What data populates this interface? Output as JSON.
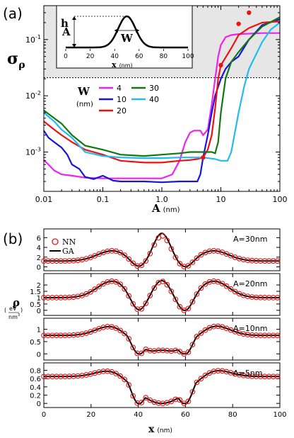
{
  "figure": {
    "panel_a_label": "(a)",
    "panel_b_label": "(b)",
    "ylabel_a_main": "σ",
    "ylabel_a_sub": "ρ",
    "xlabel_a_main": "A",
    "xlabel_a_unit": "(nm)",
    "legend_a_title": "W",
    "legend_a_unit": "(nm)",
    "inset": {
      "h_label": "h",
      "A_label": "A",
      "W_label": "W",
      "xlabel_main": "x",
      "xlabel_unit": "(nm)",
      "ticks": [
        "0",
        "20",
        "40",
        "60",
        "80",
        "100"
      ]
    },
    "ylabel_b_main": "ρ",
    "ylabel_b_unit_top": "eV",
    "ylabel_b_unit_bottom": "nm",
    "ylabel_b_unit_exp": "3",
    "xlabel_b_main": "x",
    "xlabel_b_unit": "(nm)",
    "legend_b_nn": "NN",
    "legend_b_ga": "GA"
  },
  "chart_data": [
    {
      "type": "line",
      "panel": "a",
      "xscale": "log",
      "yscale": "log",
      "xlim": [
        0.01,
        100
      ],
      "ylim": [
        0.0002,
        0.4
      ],
      "x_ticks": [
        "0.01",
        "0.1",
        "1.0",
        "10",
        "100"
      ],
      "y_ticks": [
        {
          "mant": "10",
          "exp": "-3",
          "value": 0.001
        },
        {
          "mant": "10",
          "exp": "-2",
          "value": 0.01
        },
        {
          "mant": "10",
          "exp": "-1",
          "value": 0.1
        }
      ],
      "threshold": 0.021,
      "shaded_above_threshold": true,
      "legend_placement": "center-left",
      "colors": {
        "4": "#ee22ee",
        "10": "#1515dd",
        "20": "#ee1111",
        "30": "#117711",
        "40": "#22bbee",
        "markers": "#ee1111"
      },
      "series": [
        {
          "name": "4",
          "color": "#ee22ee",
          "points": [
            [
              0.01,
              0.00072
            ],
            [
              0.012,
              0.0006
            ],
            [
              0.015,
              0.00047
            ],
            [
              0.02,
              0.0004
            ],
            [
              0.03,
              0.00038
            ],
            [
              0.05,
              0.00035
            ],
            [
              0.1,
              0.00034
            ],
            [
              0.2,
              0.00034
            ],
            [
              0.5,
              0.00034
            ],
            [
              1,
              0.00034
            ],
            [
              1.5,
              0.0004
            ],
            [
              2,
              0.0007
            ],
            [
              2.5,
              0.0015
            ],
            [
              3,
              0.0022
            ],
            [
              3.5,
              0.0024
            ],
            [
              4,
              0.0024
            ],
            [
              4.5,
              0.0024
            ],
            [
              5,
              0.002
            ],
            [
              6,
              0.0025
            ],
            [
              7,
              0.007
            ],
            [
              8,
              0.02
            ],
            [
              9,
              0.05
            ],
            [
              10,
              0.08
            ],
            [
              12,
              0.11
            ],
            [
              15,
              0.12
            ],
            [
              20,
              0.125
            ],
            [
              50,
              0.13
            ],
            [
              100,
              0.13
            ]
          ]
        },
        {
          "name": "10",
          "color": "#1515dd",
          "points": [
            [
              0.01,
              0.0024
            ],
            [
              0.012,
              0.0018
            ],
            [
              0.015,
              0.0015
            ],
            [
              0.02,
              0.0012
            ],
            [
              0.025,
              0.0009
            ],
            [
              0.03,
              0.0006
            ],
            [
              0.04,
              0.0005
            ],
            [
              0.05,
              0.00036
            ],
            [
              0.07,
              0.00033
            ],
            [
              0.1,
              0.00038
            ],
            [
              0.15,
              0.00031
            ],
            [
              0.2,
              0.0003
            ],
            [
              0.3,
              0.0003
            ],
            [
              0.5,
              0.0003
            ],
            [
              1,
              0.00029
            ],
            [
              2,
              0.0003
            ],
            [
              3,
              0.0003
            ],
            [
              4,
              0.0003
            ],
            [
              4.5,
              0.0004
            ],
            [
              5,
              0.0008
            ],
            [
              6,
              0.002
            ],
            [
              7,
              0.005
            ],
            [
              8,
              0.01
            ],
            [
              10,
              0.02
            ],
            [
              12,
              0.03
            ],
            [
              15,
              0.04
            ],
            [
              20,
              0.05
            ],
            [
              30,
              0.1
            ],
            [
              50,
              0.18
            ],
            [
              100,
              0.23
            ]
          ]
        },
        {
          "name": "20",
          "color": "#ee1111",
          "points": [
            [
              0.01,
              0.0035
            ],
            [
              0.015,
              0.0025
            ],
            [
              0.02,
              0.002
            ],
            [
              0.03,
              0.0015
            ],
            [
              0.05,
              0.0011
            ],
            [
              0.1,
              0.0009
            ],
            [
              0.2,
              0.0007
            ],
            [
              0.5,
              0.00065
            ],
            [
              1,
              0.00065
            ],
            [
              2,
              0.0007
            ],
            [
              3,
              0.00072
            ],
            [
              4,
              0.00075
            ],
            [
              5,
              0.0008
            ],
            [
              6,
              0.0011
            ],
            [
              7,
              0.002
            ],
            [
              8,
              0.006
            ],
            [
              9,
              0.02
            ],
            [
              10,
              0.035
            ],
            [
              15,
              0.07
            ],
            [
              20,
              0.12
            ],
            [
              30,
              0.16
            ],
            [
              50,
              0.2
            ],
            [
              100,
              0.21
            ]
          ]
        },
        {
          "name": "30",
          "color": "#117711",
          "points": [
            [
              0.01,
              0.0055
            ],
            [
              0.015,
              0.004
            ],
            [
              0.02,
              0.0032
            ],
            [
              0.03,
              0.002
            ],
            [
              0.05,
              0.0013
            ],
            [
              0.1,
              0.0011
            ],
            [
              0.2,
              0.0009
            ],
            [
              0.5,
              0.00085
            ],
            [
              1,
              0.0009
            ],
            [
              2,
              0.00095
            ],
            [
              3,
              0.001
            ],
            [
              4,
              0.001
            ],
            [
              5,
              0.001
            ],
            [
              7,
              0.001
            ],
            [
              8,
              0.00095
            ],
            [
              9,
              0.0015
            ],
            [
              10,
              0.005
            ],
            [
              12,
              0.02
            ],
            [
              15,
              0.04
            ],
            [
              20,
              0.06
            ],
            [
              30,
              0.1
            ],
            [
              50,
              0.17
            ],
            [
              100,
              0.25
            ]
          ]
        },
        {
          "name": "40",
          "color": "#22bbee",
          "points": [
            [
              0.01,
              0.005
            ],
            [
              0.015,
              0.0035
            ],
            [
              0.02,
              0.0025
            ],
            [
              0.03,
              0.0018
            ],
            [
              0.05,
              0.001
            ],
            [
              0.1,
              0.00085
            ],
            [
              0.2,
              0.0008
            ],
            [
              0.5,
              0.00078
            ],
            [
              1,
              0.00078
            ],
            [
              2,
              0.0008
            ],
            [
              3,
              0.0008
            ],
            [
              5,
              0.0008
            ],
            [
              8,
              0.00075
            ],
            [
              10,
              0.0007
            ],
            [
              13,
              0.0007
            ],
            [
              15,
              0.001
            ],
            [
              20,
              0.005
            ],
            [
              25,
              0.015
            ],
            [
              30,
              0.03
            ],
            [
              50,
              0.09
            ],
            [
              70,
              0.15
            ],
            [
              100,
              0.2
            ]
          ]
        }
      ],
      "markers": [
        [
          5,
          0.0008
        ],
        [
          10,
          0.035
        ],
        [
          20,
          0.19
        ],
        [
          30,
          0.3
        ]
      ]
    },
    {
      "type": "line",
      "panel": "b",
      "xlim": [
        0,
        100
      ],
      "x_ticks": [
        "0",
        "20",
        "40",
        "60",
        "80",
        "100"
      ],
      "legend_placement": "top-left",
      "subplots": [
        {
          "label": "A=30nm",
          "ylim": [
            -0.8,
            7.8
          ],
          "y_ticks": [
            "0",
            "2",
            "4",
            "6"
          ],
          "y_tick_values": [
            0,
            2,
            4,
            6
          ],
          "series": [
            {
              "name": "NN",
              "values": {
                "baseline": 1.2,
                "side_peak": 3.3,
                "center_peak": 6.4,
                "dip": 0.0
              }
            },
            {
              "name": "GA",
              "values": {
                "baseline": 1.2,
                "side_peak": 3.3,
                "center_peak": 6.9,
                "dip": 0.0
              }
            }
          ]
        },
        {
          "label": "A=20nm",
          "ylim": [
            -0.4,
            2.9
          ],
          "y_ticks": [
            "0",
            "0.5",
            "1",
            "1.5",
            "2"
          ],
          "y_tick_values": [
            0,
            0.5,
            1,
            1.5,
            2
          ],
          "series": [
            {
              "name": "NN",
              "values": {
                "baseline": 1.0,
                "side_peak": 2.3,
                "center_peak": 2.3,
                "dip": 0.0
              }
            },
            {
              "name": "GA",
              "values": {
                "baseline": 1.0,
                "side_peak": 2.3,
                "center_peak": 2.35,
                "dip": 0.0
              }
            }
          ]
        },
        {
          "label": "A=10nm",
          "ylim": [
            -0.25,
            1.45
          ],
          "y_ticks": [
            "0",
            "0.5",
            "1"
          ],
          "y_tick_values": [
            0,
            0.5,
            1
          ],
          "series": [
            {
              "name": "NN",
              "values": {
                "baseline": 0.75,
                "side_peak": 1.2,
                "center_peak": 0.15,
                "dip": 0.0
              }
            },
            {
              "name": "GA",
              "values": {
                "baseline": 0.75,
                "side_peak": 1.2,
                "center_peak": 0.15,
                "dip": 0.0
              }
            }
          ]
        },
        {
          "label": "A=5nm",
          "ylim": [
            -0.1,
            0.98
          ],
          "y_ticks": [
            "0",
            "0.2",
            "0.4",
            "0.6",
            "0.8"
          ],
          "y_tick_values": [
            0,
            0.2,
            0.4,
            0.6,
            0.8
          ],
          "series": [
            {
              "name": "NN",
              "values": {
                "baseline": 0.65,
                "side_peak": 0.85,
                "center_peak": 0.0,
                "dip": 0.0
              }
            },
            {
              "name": "GA",
              "values": {
                "baseline": 0.65,
                "side_peak": 0.85,
                "center_peak": 0.0,
                "dip": 0.0
              }
            }
          ]
        }
      ]
    }
  ]
}
